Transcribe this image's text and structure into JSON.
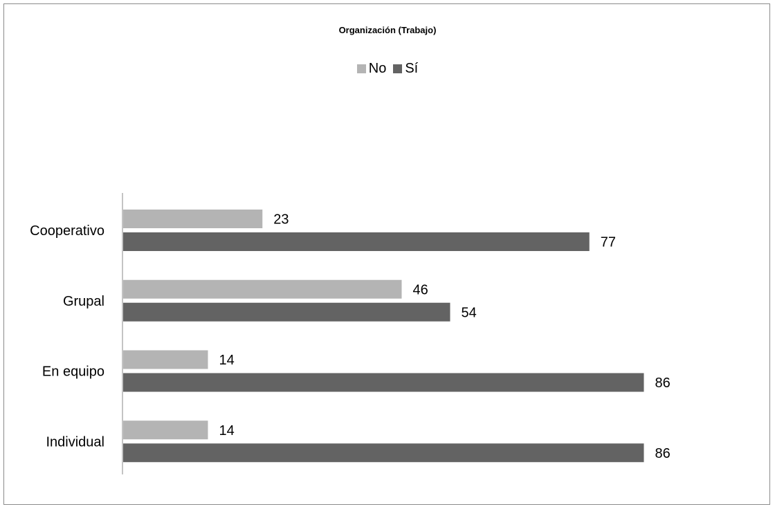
{
  "chart_data": {
    "type": "bar",
    "orientation": "horizontal",
    "title": "Organización (Trabajo)",
    "categories": [
      "Cooperativo",
      "Grupal",
      "En equipo",
      "Individual"
    ],
    "series": [
      {
        "name": "No",
        "values": [
          23,
          46,
          14,
          14
        ],
        "color": "#b4b4b4"
      },
      {
        "name": "Sí",
        "values": [
          77,
          54,
          86,
          86
        ],
        "color": "#636363"
      }
    ],
    "xlim": [
      0,
      100
    ],
    "grid": false,
    "legend_position": "top",
    "data_labels": true
  }
}
